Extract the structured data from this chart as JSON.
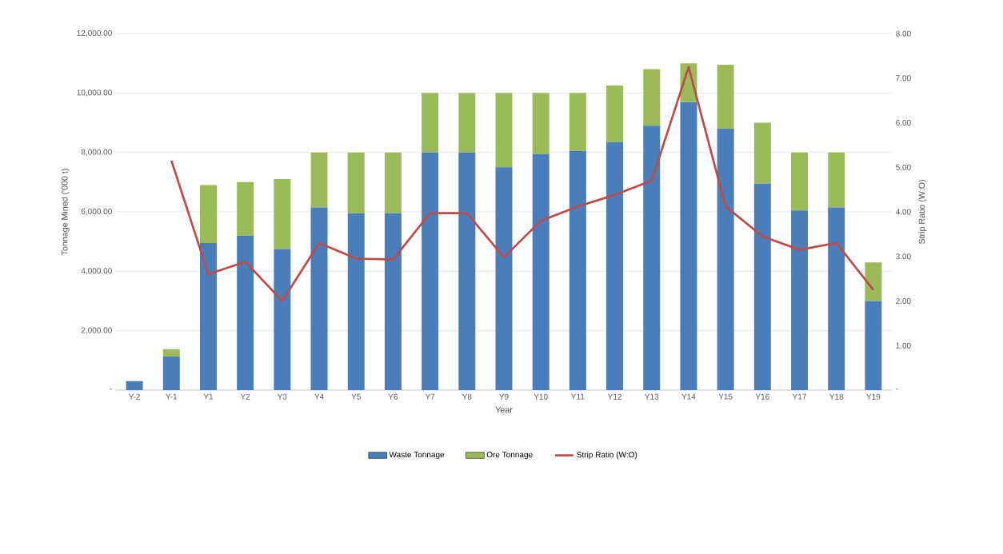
{
  "chart_data": {
    "type": "bar",
    "stacked": true,
    "xlabel": "Year",
    "ylabel": "Tonnage Mined ('000 t)",
    "y2label": "Strip Ratio (W:O)",
    "categories": [
      "Y-2",
      "Y-1",
      "Y1",
      "Y2",
      "Y3",
      "Y4",
      "Y5",
      "Y6",
      "Y7",
      "Y8",
      "Y9",
      "Y10",
      "Y11",
      "Y12",
      "Y13",
      "Y14",
      "Y15",
      "Y16",
      "Y17",
      "Y18",
      "Y19"
    ],
    "series": [
      {
        "name": "Waste Tonnage",
        "color": "#4a7ebb",
        "values": [
          300,
          1130,
          4950,
          5200,
          4750,
          6150,
          5950,
          5950,
          8000,
          8000,
          7500,
          7950,
          8050,
          8350,
          8900,
          9700,
          8800,
          6950,
          6050,
          6150,
          3000
        ]
      },
      {
        "name": "Ore Tonnage",
        "color": "#9bbb59",
        "values": [
          0,
          250,
          1950,
          1800,
          2350,
          1850,
          2050,
          2050,
          2000,
          2000,
          2500,
          2050,
          1950,
          1900,
          1900,
          1300,
          2150,
          2050,
          1950,
          1850,
          1300
        ]
      },
      {
        "name": "Strip Ratio (W:O)",
        "type": "line",
        "axis": "y2",
        "color": "#be4b48",
        "values": [
          null,
          5.15,
          2.6,
          2.88,
          2.0,
          3.3,
          2.95,
          2.93,
          3.97,
          3.97,
          2.98,
          3.8,
          4.12,
          4.38,
          4.7,
          7.25,
          4.12,
          3.45,
          3.15,
          3.3,
          2.25
        ]
      }
    ],
    "ylim": [
      0,
      12000
    ],
    "yticks": [
      {
        "value": 0,
        "label": "-"
      },
      {
        "value": 2000,
        "label": "2,000.00"
      },
      {
        "value": 4000,
        "label": "4,000.00"
      },
      {
        "value": 6000,
        "label": "6,000.00"
      },
      {
        "value": 8000,
        "label": "8,000.00"
      },
      {
        "value": 10000,
        "label": "10,000.00"
      },
      {
        "value": 12000,
        "label": "12,000.00"
      }
    ],
    "y2lim": [
      0,
      8
    ],
    "y2ticks": [
      {
        "value": 0,
        "label": "-"
      },
      {
        "value": 1,
        "label": "1.00"
      },
      {
        "value": 2,
        "label": "2.00"
      },
      {
        "value": 3,
        "label": "3.00"
      },
      {
        "value": 4,
        "label": "4.00"
      },
      {
        "value": 5,
        "label": "5.00"
      },
      {
        "value": 6,
        "label": "6.00"
      },
      {
        "value": 7,
        "label": "7.00"
      },
      {
        "value": 8,
        "label": "8.00"
      }
    ],
    "grid": "y",
    "legend": "bottom"
  }
}
